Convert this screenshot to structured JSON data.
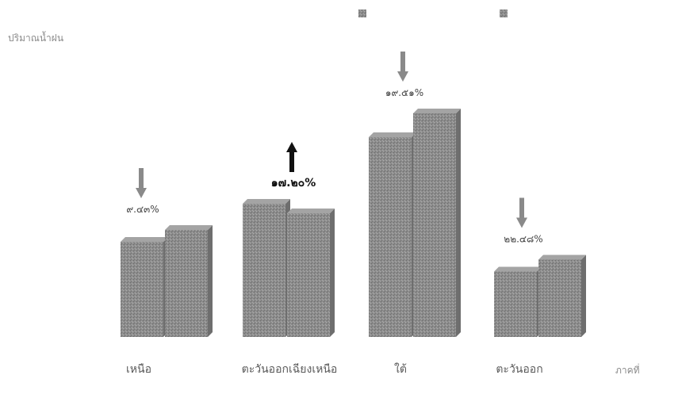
{
  "chart_data": {
    "type": "bar",
    "title": "",
    "ylabel": "ปริมาณน้ำฝน",
    "xlabel": "ภาคที่",
    "categories": [
      "เหนือ",
      "ตะวันออกเฉียงเหนือ",
      "ใต้",
      "ตะวันออก"
    ],
    "series": [
      {
        "name": "",
        "values": [
          80,
          112,
          168,
          55
        ],
        "color": "#8f8f8f"
      },
      {
        "name": "",
        "values": [
          90,
          104,
          188,
          65
        ],
        "color": "#8a8a8a"
      }
    ],
    "change_labels": [
      "๙.๔๓%",
      "๑๗.๒๐%",
      "๑๙.๕๑%",
      "๒๒.๔๘%"
    ],
    "change_direction": [
      "down",
      "up",
      "down",
      "down"
    ],
    "ylim": [
      0,
      220
    ],
    "grid": false,
    "legend_position": "top-right"
  }
}
